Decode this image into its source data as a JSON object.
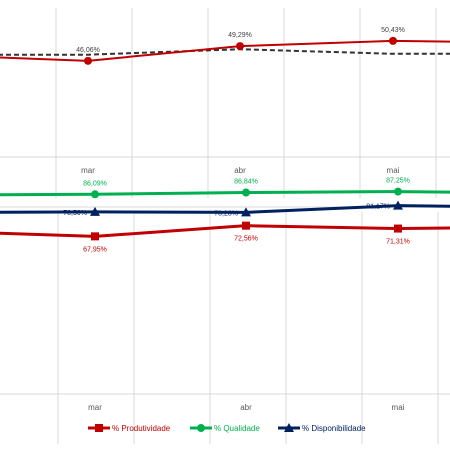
{
  "colors": {
    "produtividade": "#c00000",
    "qualidade": "#00b050",
    "disponibilidade": "#002060",
    "top_line": "#c00000",
    "top_dashed": "#333333",
    "gridline": "#d9d9d9"
  },
  "chart_data": [
    {
      "type": "line",
      "categories": [
        "mar",
        "abr",
        "mai"
      ],
      "series": [
        {
          "values": [
            46.06,
            49.29,
            50.43
          ],
          "labels": [
            "46,06%",
            "49,29%",
            "50,43%"
          ],
          "style": "solid"
        },
        {
          "values": [
            47.4,
            48.6,
            47.6
          ],
          "style": "dashed"
        }
      ],
      "ylim": [
        25,
        55
      ],
      "grid": "vertical-only",
      "legend": "none"
    },
    {
      "type": "line",
      "categories": [
        "mar",
        "abr",
        "mai"
      ],
      "series": [
        {
          "name": "% Produtividade",
          "values": [
            67.95,
            72.56,
            71.31
          ],
          "labels": [
            "67,95%",
            "72,56%",
            "71,31%"
          ],
          "marker": "square"
        },
        {
          "name": "% Qualidade",
          "values": [
            86.09,
            86.84,
            87.25
          ],
          "labels": [
            "86,09%",
            "86,84%",
            "87,25%"
          ],
          "marker": "circle"
        },
        {
          "name": "% Disponibilidade",
          "values": [
            78.5,
            78.28,
            81.17
          ],
          "labels": [
            "78,50%",
            "78,28%",
            "81,17%"
          ],
          "marker": "triangle"
        }
      ],
      "ylim": [
        0,
        100
      ],
      "grid": "vertical-only",
      "legend": "bottom"
    }
  ]
}
